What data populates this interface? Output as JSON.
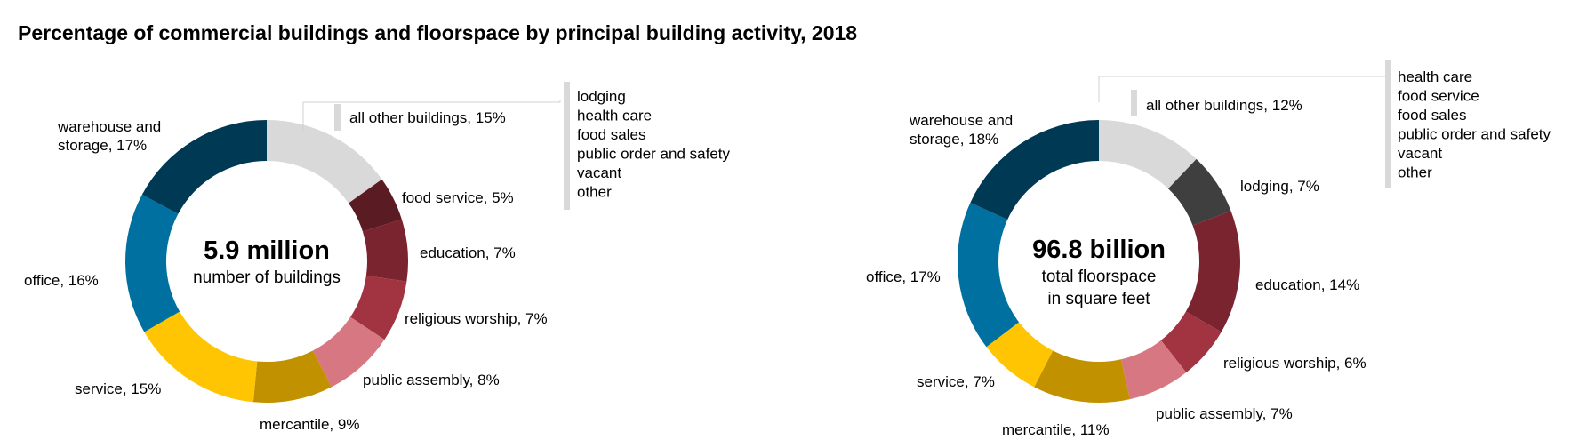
{
  "title": "Percentage of commercial buildings and floorspace by principal building activity, 2018",
  "chart_data": [
    {
      "type": "pie",
      "variant": "donut",
      "center_value": "5.9 million",
      "center_label": [
        "number of buildings"
      ],
      "unit": "%",
      "slices": [
        {
          "name": "all other buildings",
          "value": 15,
          "color": "#d9d9d9",
          "label": "all other buildings, 15%"
        },
        {
          "name": "food service",
          "value": 5,
          "color": "#5a1c22",
          "label": "food service, 5%"
        },
        {
          "name": "education",
          "value": 7,
          "color": "#7a2430",
          "label": "education, 7%"
        },
        {
          "name": "religious worship",
          "value": 7,
          "color": "#a23341",
          "label": "religious worship, 7%"
        },
        {
          "name": "public assembly",
          "value": 8,
          "color": "#d77782",
          "label": "public assembly, 8%"
        },
        {
          "name": "mercantile",
          "value": 9,
          "color": "#c29100",
          "label": "mercantile, 9%"
        },
        {
          "name": "service",
          "value": 15,
          "color": "#ffc502",
          "label": "service, 15%"
        },
        {
          "name": "office",
          "value": 16,
          "color": "#0070a1",
          "label": "office, 16%"
        },
        {
          "name": "warehouse and storage",
          "value": 17,
          "color": "#003953",
          "label": [
            "warehouse and",
            "storage, 17%"
          ]
        }
      ],
      "other_categories": [
        "lodging",
        "health care",
        "food sales",
        "public order and safety",
        "vacant",
        "other"
      ]
    },
    {
      "type": "pie",
      "variant": "donut",
      "center_value": "96.8 billion",
      "center_label": [
        "total floorspace",
        "in square feet"
      ],
      "unit": "%",
      "slices": [
        {
          "name": "all other buildings",
          "value": 12,
          "color": "#d9d9d9",
          "label": "all other buildings, 12%"
        },
        {
          "name": "lodging",
          "value": 7,
          "color": "#3f3f3f",
          "label": "lodging, 7%"
        },
        {
          "name": "education",
          "value": 14,
          "color": "#7a2430",
          "label": "education, 14%"
        },
        {
          "name": "religious worship",
          "value": 6,
          "color": "#a23341",
          "label": "religious worship, 6%"
        },
        {
          "name": "public assembly",
          "value": 7,
          "color": "#d77782",
          "label": "public assembly, 7%"
        },
        {
          "name": "mercantile",
          "value": 11,
          "color": "#c29100",
          "label": "mercantile, 11%"
        },
        {
          "name": "service",
          "value": 7,
          "color": "#ffc502",
          "label": "service, 7%"
        },
        {
          "name": "office",
          "value": 17,
          "color": "#0070a1",
          "label": "office, 17%"
        },
        {
          "name": "warehouse and storage",
          "value": 18,
          "color": "#003953",
          "label": [
            "warehouse and",
            "storage, 18%"
          ]
        }
      ],
      "other_categories": [
        "health care",
        "food service",
        "food sales",
        "public order and safety",
        "vacant",
        "other"
      ]
    }
  ]
}
